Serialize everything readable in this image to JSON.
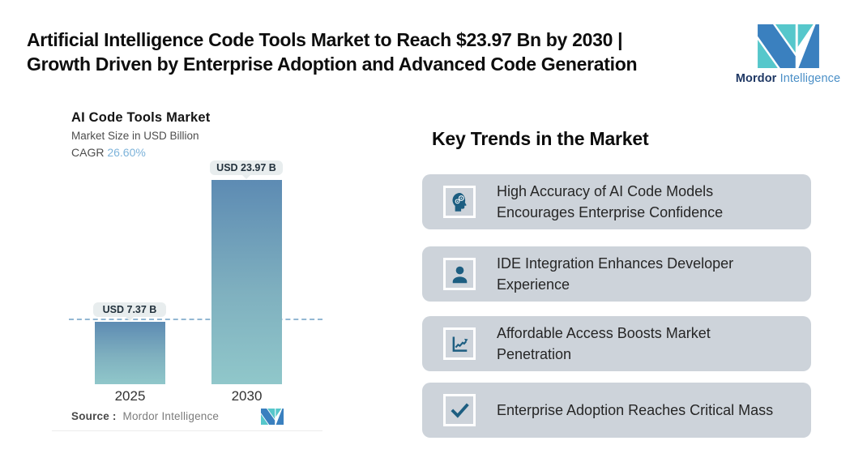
{
  "header": {
    "title_line1": "Artificial Intelligence Code Tools Market to Reach $23.97 Bn by 2030 |",
    "title_line2": "Growth Driven by Enterprise Adoption and Advanced Code Generation",
    "brand": {
      "name_bold": "Mordor",
      "name_light": "Intelligence"
    }
  },
  "chart": {
    "title": "AI Code Tools Market",
    "subtitle": "Market Size in USD Billion",
    "cagr_label": "CAGR",
    "cagr_value": "26.60%",
    "bars": [
      {
        "year": "2025",
        "label": "USD 7.37 B",
        "value": 7.37
      },
      {
        "year": "2030",
        "label": "USD 23.97 B",
        "value": 23.97
      }
    ],
    "source_label": "Source :",
    "source_value": "Mordor Intelligence"
  },
  "chart_data": {
    "type": "bar",
    "title": "AI Code Tools Market",
    "subtitle": "Market Size in USD Billion",
    "unit": "USD Billion",
    "categories": [
      "2025",
      "2030"
    ],
    "values": [
      7.37,
      23.97
    ],
    "data_labels": [
      "USD 7.37 B",
      "USD 23.97 B"
    ],
    "cagr": "26.60%",
    "reference_line_value": 7.37,
    "reference_line_style": "dashed",
    "grid": false,
    "legend": false,
    "source": "Mordor Intelligence"
  },
  "trends": {
    "heading": "Key Trends in the Market",
    "items": [
      {
        "icon": "ai-head-gears-icon",
        "text": "High Accuracy of AI Code Models Encourages Enterprise Confidence"
      },
      {
        "icon": "developer-person-icon",
        "text": "IDE Integration Enhances Developer Experience"
      },
      {
        "icon": "growth-chart-icon",
        "text": "Affordable Access Boosts Market Penetration"
      },
      {
        "icon": "checkmark-icon",
        "text": "Enterprise Adoption Reaches Critical Mass"
      }
    ]
  },
  "colors": {
    "bar_gradient_top": "#5d8bb3",
    "bar_gradient_bottom": "#90c7ca",
    "cagr_accent": "#7db3da",
    "dashed_line": "#93b8d3",
    "value_pill_bg": "#e8edee",
    "trend_card_bg": "#cdd3da",
    "icon_teal": "#1d5e81",
    "logo_blue": "#3a80bf",
    "logo_teal": "#56c7cb",
    "brand_navy": "#1f3864",
    "brand_blue": "#4a8fc7"
  }
}
